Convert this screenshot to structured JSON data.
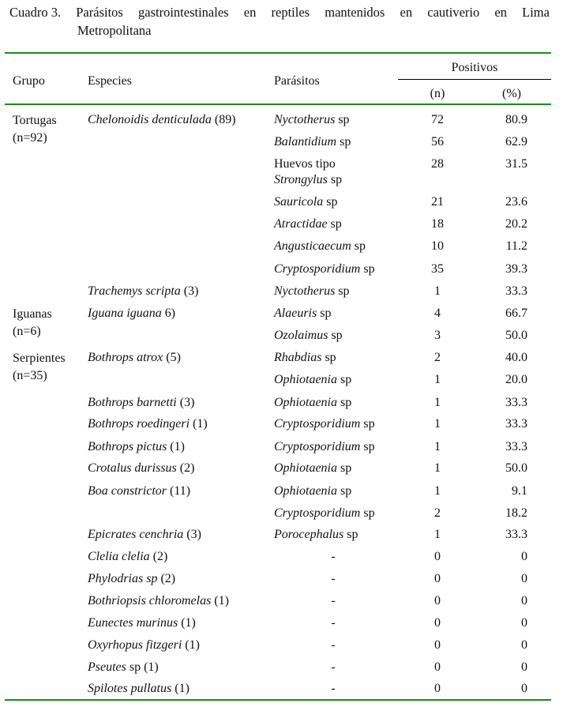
{
  "caption": {
    "label": "Cuadro 3.",
    "words": [
      "Parásitos",
      "gastrointestinales",
      "en",
      "reptiles",
      "mantenidos",
      "en",
      "cautiverio",
      "en",
      "Lima"
    ],
    "line2": "Metropolitana"
  },
  "headers": {
    "grupo": "Grupo",
    "especies": "Especies",
    "parasitos": "Parásitos",
    "positivos": "Positivos",
    "n": "(n)",
    "pct": "(%)"
  },
  "groups": [
    {
      "name": "Tortugas",
      "count": "(n=92)"
    },
    {
      "name": "Iguanas",
      "count": "(n=6)"
    },
    {
      "name": "Serpientes",
      "count": "(n=35)"
    }
  ],
  "species": [
    {
      "name": "Chelonoidis denticulada",
      "count": "(89)"
    },
    {
      "name": "Trachemys scripta",
      "count": "(3)"
    },
    {
      "name": "Iguana iguana",
      "count": "6)"
    },
    {
      "name": "Bothrops atrox",
      "count": "(5)"
    },
    {
      "name": "Bothrops barnetti",
      "count": "(3)"
    },
    {
      "name": "Bothrops roedingeri",
      "count": "(1)"
    },
    {
      "name": "Bothrops pictus",
      "count": "(1)"
    },
    {
      "name": "Crotalus durissus",
      "count": "(2)"
    },
    {
      "name": "Boa constrictor",
      "count": "(11)"
    },
    {
      "name": "Epicrates cenchria",
      "count": "(3)"
    },
    {
      "name": "Clelia clelia",
      "count": "(2)"
    },
    {
      "name": "Phylodrias sp",
      "count": "(2)"
    },
    {
      "name": "Bothriopsis chloromelas",
      "count": "(1)"
    },
    {
      "name": "Eunectes murinus",
      "count": "(1)"
    },
    {
      "name": "Oxyrhopus fitzgeri",
      "count": "(1)"
    },
    {
      "name": "Pseutes",
      "count": "sp (1)"
    },
    {
      "name": "Spilotes pullatus",
      "count": "(1)"
    }
  ],
  "rows": [
    {
      "pre": "",
      "genus": "Nyctotherus",
      "suffix": " sp",
      "n": "72",
      "pct": "80.9"
    },
    {
      "pre": "",
      "genus": "Balantidium",
      "suffix": " sp",
      "n": "56",
      "pct": "62.9"
    },
    {
      "pre": "Huevos tipo",
      "genus": "Strongylus",
      "suffix": " sp",
      "n": "28",
      "pct": "31.5"
    },
    {
      "pre": "",
      "genus": "Sauricola",
      "suffix": " sp",
      "n": "21",
      "pct": "23.6"
    },
    {
      "pre": "",
      "genus": "Atractidae",
      "suffix": " sp",
      "n": "18",
      "pct": "20.2"
    },
    {
      "pre": "",
      "genus": "Angusticaecum",
      "suffix": " sp",
      "n": "10",
      "pct": "11.2"
    },
    {
      "pre": "",
      "genus": "Cryptosporidium",
      "suffix": " sp",
      "n": "35",
      "pct": "39.3"
    },
    {
      "pre": "",
      "genus": "Nyctotherus",
      "suffix": " sp",
      "n": "1",
      "pct": "33.3"
    },
    {
      "pre": "",
      "genus": "Alaeuris",
      "suffix": " sp",
      "n": "4",
      "pct": "66.7"
    },
    {
      "pre": "",
      "genus": "Ozolaimus",
      "suffix": " sp",
      "n": "3",
      "pct": "50.0"
    },
    {
      "pre": "",
      "genus": "Rhabdias",
      "suffix": " sp",
      "n": "2",
      "pct": "40.0"
    },
    {
      "pre": "",
      "genus": "Ophiotaenia",
      "suffix": " sp",
      "n": "1",
      "pct": "20.0"
    },
    {
      "pre": "",
      "genus": "Ophiotaenia",
      "suffix": " sp",
      "n": "1",
      "pct": "33.3"
    },
    {
      "pre": "",
      "genus": "Cryptosporidium",
      "suffix": " sp",
      "n": "1",
      "pct": "33.3"
    },
    {
      "pre": "",
      "genus": "Cryptosporidium",
      "suffix": " sp",
      "n": "1",
      "pct": "33.3"
    },
    {
      "pre": "",
      "genus": "Ophiotaenia",
      "suffix": " sp",
      "n": "1",
      "pct": "50.0"
    },
    {
      "pre": "",
      "genus": "Ophiotaenia",
      "suffix": " sp",
      "n": "1",
      "pct": "9.1"
    },
    {
      "pre": "",
      "genus": "Cryptosporidium",
      "suffix": " sp",
      "n": "2",
      "pct": "18.2"
    },
    {
      "pre": "",
      "genus": "Porocephalus",
      "suffix": " sp",
      "n": "1",
      "pct": "33.3"
    },
    {
      "pre": "",
      "genus": "-",
      "suffix": "",
      "n": "0",
      "pct": "0"
    },
    {
      "pre": "",
      "genus": "-",
      "suffix": "",
      "n": "0",
      "pct": "0"
    },
    {
      "pre": "",
      "genus": "-",
      "suffix": "",
      "n": "0",
      "pct": "0"
    },
    {
      "pre": "",
      "genus": "-",
      "suffix": "",
      "n": "0",
      "pct": "0"
    },
    {
      "pre": "",
      "genus": "-",
      "suffix": "",
      "n": "0",
      "pct": "0"
    },
    {
      "pre": "",
      "genus": "-",
      "suffix": "",
      "n": "0",
      "pct": "0"
    },
    {
      "pre": "",
      "genus": "-",
      "suffix": "",
      "n": "0",
      "pct": "0"
    }
  ]
}
